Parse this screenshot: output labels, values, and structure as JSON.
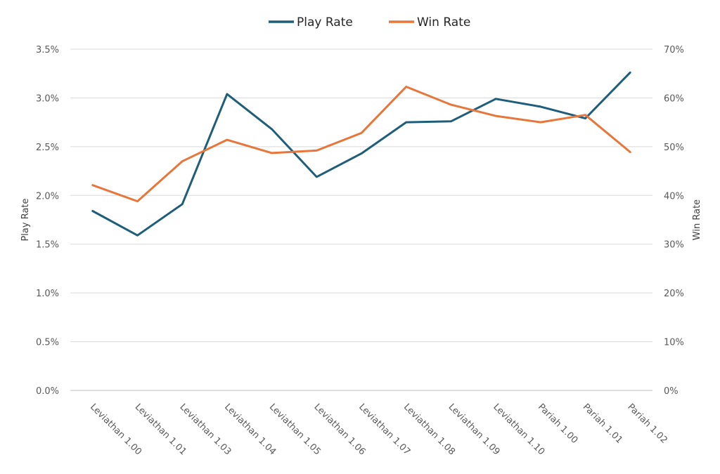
{
  "chart_data": {
    "type": "line",
    "title": "",
    "categories": [
      "Leviathan 1.00",
      "Leviathan 1.01",
      "Leviathan 1.03",
      "Leviathan 1.04",
      "Leviathan 1.05",
      "Leviathan 1.06",
      "Leviathan 1.07",
      "Leviathan 1.08",
      "Leviathan 1.09",
      "Leviathan 1.10",
      "Pariah 1.00",
      "Pariah 1.01",
      "Pariah 1.02"
    ],
    "series": [
      {
        "name": "Play Rate",
        "axis": "left",
        "color": "#1f5e7a",
        "values": [
          1.84,
          1.59,
          1.91,
          3.04,
          2.68,
          2.19,
          2.43,
          2.75,
          2.76,
          2.99,
          2.91,
          2.79,
          3.26
        ]
      },
      {
        "name": "Win Rate",
        "axis": "right",
        "color": "#e8763a",
        "values": [
          42.1,
          38.8,
          47.0,
          51.4,
          48.7,
          49.2,
          52.8,
          62.3,
          58.6,
          56.3,
          55.0,
          56.5,
          48.9
        ]
      }
    ],
    "ylabel": "Play Rate",
    "ylabel_right": "Win Rate",
    "ylim": [
      0,
      3.5
    ],
    "ylim_right": [
      0,
      70
    ],
    "yticks": [
      "0.0%",
      "0.5%",
      "1.0%",
      "1.5%",
      "2.0%",
      "2.5%",
      "3.0%",
      "3.5%"
    ],
    "yticks_right": [
      "0%",
      "10%",
      "20%",
      "30%",
      "40%",
      "50%",
      "60%",
      "70%"
    ],
    "grid": true,
    "legend": "top-center"
  }
}
